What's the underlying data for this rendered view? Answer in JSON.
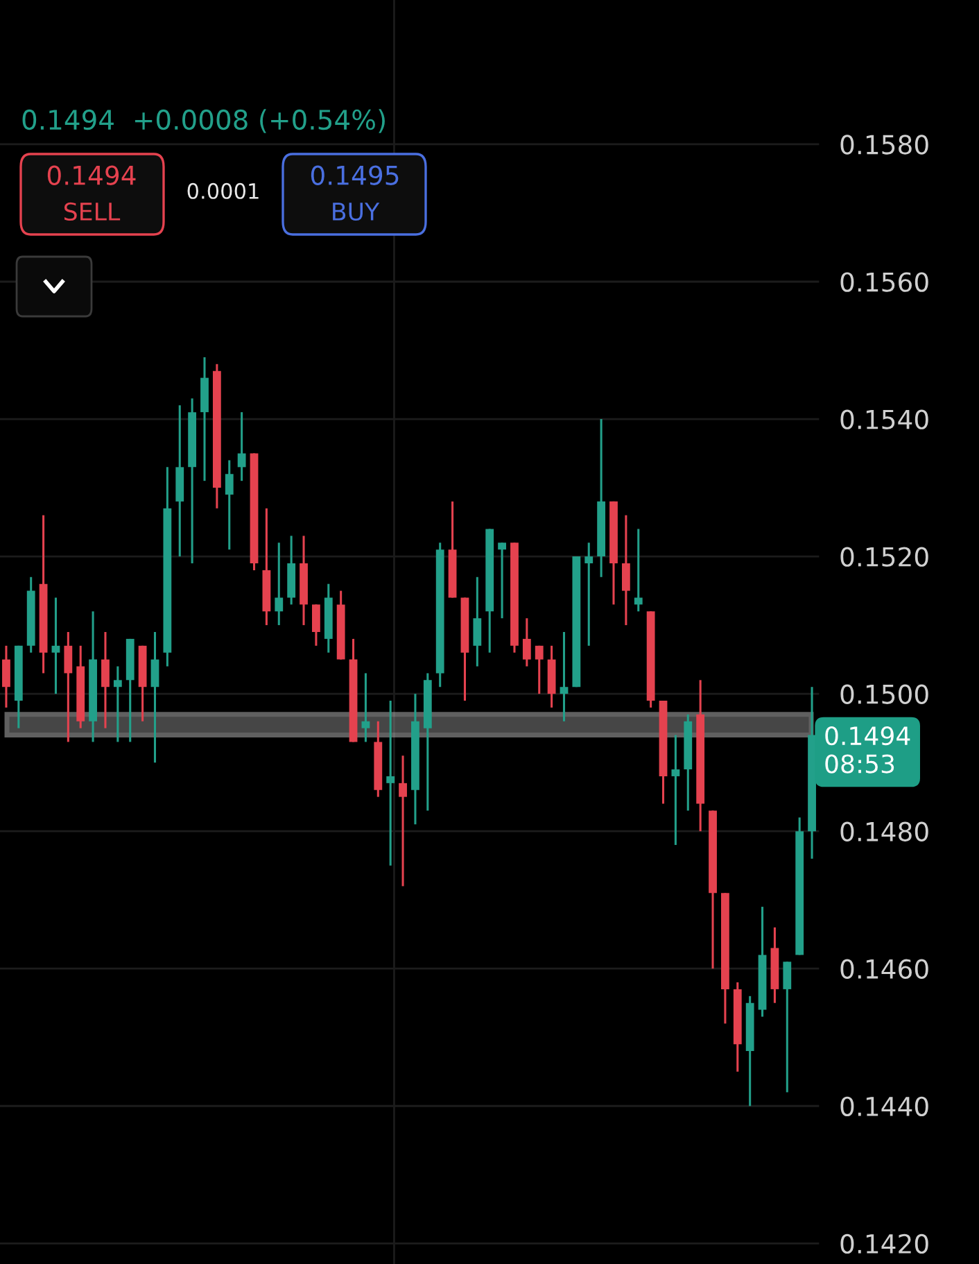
{
  "chart_data": {
    "type": "candlestick",
    "subtitle": "0.1494  +0.0008 (+0.54%)",
    "categories": [
      null,
      null,
      null,
      null,
      null,
      null,
      null,
      null,
      null,
      null,
      null,
      null,
      null,
      null,
      null,
      null,
      null,
      null,
      null,
      null,
      null,
      null,
      null,
      null,
      null,
      null,
      null,
      null,
      null,
      null,
      null,
      null,
      null,
      null,
      null,
      null,
      null,
      null,
      null,
      null,
      null,
      null,
      null,
      null,
      null,
      null,
      null,
      null,
      null,
      null,
      null,
      null,
      null,
      null,
      null,
      null,
      null,
      null,
      null,
      null,
      null,
      null,
      null,
      null,
      null,
      null
    ],
    "ohlc": [
      [
        0.1505,
        0.1507,
        0.1498,
        0.1501
      ],
      [
        0.1499,
        0.1507,
        0.1495,
        0.1507
      ],
      [
        0.1507,
        0.1517,
        0.1506,
        0.1515
      ],
      [
        0.1516,
        0.1526,
        0.1503,
        0.1506
      ],
      [
        0.1506,
        0.1514,
        0.15,
        0.1507
      ],
      [
        0.1507,
        0.1509,
        0.1493,
        0.1503
      ],
      [
        0.1504,
        0.1507,
        0.1495,
        0.1496
      ],
      [
        0.1496,
        0.1512,
        0.1493,
        0.1505
      ],
      [
        0.1505,
        0.1509,
        0.1495,
        0.1501
      ],
      [
        0.1501,
        0.1504,
        0.1493,
        0.1502
      ],
      [
        0.1502,
        0.1508,
        0.1493,
        0.1508
      ],
      [
        0.1507,
        0.1507,
        0.1496,
        0.1501
      ],
      [
        0.1501,
        0.1509,
        0.149,
        0.1505
      ],
      [
        0.1506,
        0.1533,
        0.1504,
        0.1527
      ],
      [
        0.1528,
        0.1542,
        0.152,
        0.1533
      ],
      [
        0.1533,
        0.1543,
        0.1519,
        0.1541
      ],
      [
        0.1541,
        0.1549,
        0.1531,
        0.1546
      ],
      [
        0.1547,
        0.1548,
        0.1527,
        0.153
      ],
      [
        0.1529,
        0.1534,
        0.1521,
        0.1532
      ],
      [
        0.1533,
        0.1541,
        0.1531,
        0.1535
      ],
      [
        0.1535,
        0.1535,
        0.1518,
        0.1519
      ],
      [
        0.1518,
        0.1527,
        0.151,
        0.1512
      ],
      [
        0.1512,
        0.1522,
        0.151,
        0.1514
      ],
      [
        0.1514,
        0.1523,
        0.1513,
        0.1519
      ],
      [
        0.1519,
        0.1523,
        0.151,
        0.1513
      ],
      [
        0.1513,
        0.1513,
        0.1507,
        0.1509
      ],
      [
        0.1508,
        0.1516,
        0.1506,
        0.1514
      ],
      [
        0.1513,
        0.1515,
        0.1505,
        0.1505
      ],
      [
        0.1505,
        0.1508,
        0.1493,
        0.1493
      ],
      [
        0.1495,
        0.1503,
        0.1493,
        0.1496
      ],
      [
        0.1493,
        0.1496,
        0.1485,
        0.1486
      ],
      [
        0.1487,
        0.1499,
        0.1475,
        0.1488
      ],
      [
        0.1487,
        0.1491,
        0.1472,
        0.1485
      ],
      [
        0.1486,
        0.15,
        0.1481,
        0.1496
      ],
      [
        0.1495,
        0.1503,
        0.1483,
        0.1502
      ],
      [
        0.1503,
        0.1522,
        0.1501,
        0.1521
      ],
      [
        0.1521,
        0.1528,
        0.1514,
        0.1514
      ],
      [
        0.1514,
        0.1514,
        0.1499,
        0.1506
      ],
      [
        0.1507,
        0.1517,
        0.1504,
        0.1511
      ],
      [
        0.1512,
        0.1524,
        0.1506,
        0.1524
      ],
      [
        0.1521,
        0.1522,
        0.1511,
        0.1522
      ],
      [
        0.1522,
        0.1522,
        0.1506,
        0.1507
      ],
      [
        0.1508,
        0.1511,
        0.1504,
        0.1505
      ],
      [
        0.1507,
        0.1507,
        0.15,
        0.1505
      ],
      [
        0.1505,
        0.1507,
        0.1498,
        0.15
      ],
      [
        0.15,
        0.1509,
        0.1496,
        0.1501
      ],
      [
        0.1501,
        0.152,
        0.1501,
        0.152
      ],
      [
        0.1519,
        0.1522,
        0.1507,
        0.152
      ],
      [
        0.152,
        0.154,
        0.1517,
        0.1528
      ],
      [
        0.1528,
        0.1528,
        0.1513,
        0.1519
      ],
      [
        0.1519,
        0.1526,
        0.151,
        0.1515
      ],
      [
        0.1513,
        0.1524,
        0.1512,
        0.1514
      ],
      [
        0.1512,
        0.1512,
        0.1498,
        0.1499
      ],
      [
        0.1499,
        0.1499,
        0.1484,
        0.1488
      ],
      [
        0.1488,
        0.1494,
        0.1478,
        0.1489
      ],
      [
        0.1489,
        0.1497,
        0.1483,
        0.1496
      ],
      [
        0.1497,
        0.1502,
        0.148,
        0.1484
      ],
      [
        0.1483,
        0.1483,
        0.146,
        0.1471
      ],
      [
        0.1471,
        0.1471,
        0.1452,
        0.1457
      ],
      [
        0.1457,
        0.1458,
        0.1445,
        0.1449
      ],
      [
        0.1448,
        0.1456,
        0.144,
        0.1455
      ],
      [
        0.1454,
        0.1469,
        0.1453,
        0.1462
      ],
      [
        0.1463,
        0.1466,
        0.1455,
        0.1457
      ],
      [
        0.1457,
        0.1461,
        0.1442,
        0.1461
      ],
      [
        0.1462,
        0.1482,
        0.1462,
        0.148
      ],
      [
        0.148,
        0.1501,
        0.1476,
        0.1494
      ]
    ],
    "colors": [
      "#e5424f",
      "#22a08a",
      "#22a08a",
      "#e5424f",
      "#22a08a",
      "#e5424f",
      "#e5424f",
      "#22a08a",
      "#e5424f",
      "#22a08a",
      "#22a08a",
      "#e5424f",
      "#22a08a",
      "#22a08a",
      "#22a08a",
      "#22a08a",
      "#22a08a",
      "#e5424f",
      "#22a08a",
      "#22a08a",
      "#e5424f",
      "#e5424f",
      "#22a08a",
      "#22a08a",
      "#e5424f",
      "#e5424f",
      "#22a08a",
      "#e5424f",
      "#e5424f",
      "#22a08a",
      "#e5424f",
      "#22a08a",
      "#e5424f",
      "#22a08a",
      "#22a08a",
      "#22a08a",
      "#e5424f",
      "#e5424f",
      "#22a08a",
      "#22a08a",
      "#22a08a",
      "#e5424f",
      "#e5424f",
      "#e5424f",
      "#e5424f",
      "#22a08a",
      "#22a08a",
      "#22a08a",
      "#22a08a",
      "#e5424f",
      "#e5424f",
      "#22a08a",
      "#e5424f",
      "#e5424f",
      "#22a08a",
      "#22a08a",
      "#e5424f",
      "#e5424f",
      "#e5424f",
      "#e5424f",
      "#22a08a",
      "#22a08a",
      "#e5424f",
      "#22a08a",
      "#22a08a",
      "#22a08a"
    ],
    "ylim": [
      0.1417,
      0.1601
    ],
    "yticks": [
      {
        "value": 0.142,
        "label": "0.1420"
      },
      {
        "value": 0.144,
        "label": "0.1440"
      },
      {
        "value": 0.146,
        "label": "0.1460"
      },
      {
        "value": 0.148,
        "label": "0.1480"
      },
      {
        "value": 0.15,
        "label": "0.1500"
      },
      {
        "value": 0.152,
        "label": "0.1520"
      },
      {
        "value": 0.154,
        "label": "0.1540"
      },
      {
        "value": 0.156,
        "label": "0.1560"
      },
      {
        "value": 0.158,
        "label": "0.1580"
      }
    ],
    "tick_labels": "y",
    "grid": "y",
    "legend": false,
    "bands": [
      {
        "axis": "y",
        "from": 0.1494,
        "to": 0.1497,
        "color": "#808080"
      }
    ],
    "annotations": [
      "0.1494",
      "SELL",
      "0.0001",
      "0.1495",
      "BUY",
      "0.1494\n08:53"
    ]
  }
}
